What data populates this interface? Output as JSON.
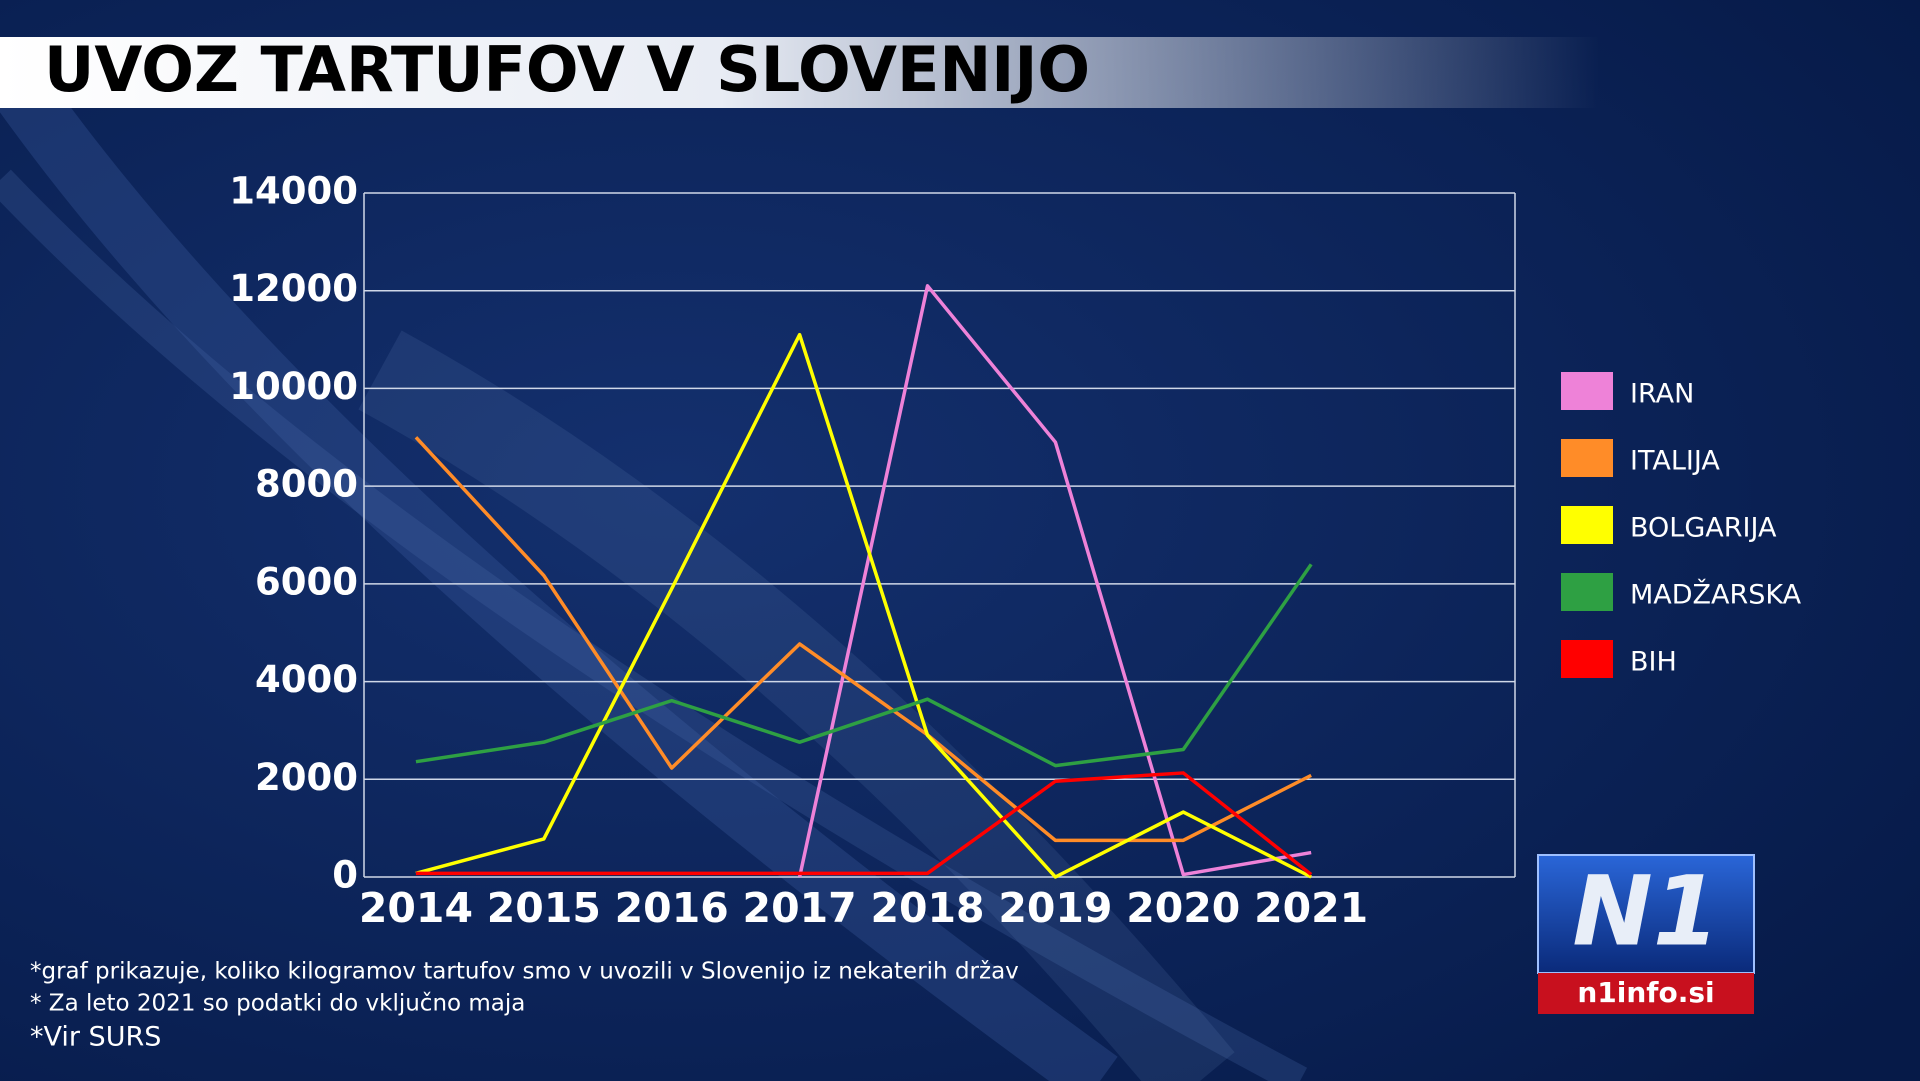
{
  "chart_data": {
    "type": "line",
    "title": "UVOZ TARTUFOV V SLOVENIJO",
    "categories": [
      "2014",
      "2015",
      "2016",
      "2017",
      "2018",
      "2019",
      "2020",
      "2021",
      null
    ],
    "series": [
      {
        "name": "IRAN",
        "color": "#ee82d8",
        "values": [
          null,
          null,
          null,
          0,
          12100,
          8900,
          50,
          500,
          null
        ]
      },
      {
        "name": "ITALIJA",
        "color": "#ff8c28",
        "values": [
          9000,
          6170,
          2230,
          4770,
          2910,
          750,
          750,
          2080,
          null
        ]
      },
      {
        "name": "BOLGARIJA",
        "color": "#ffff00",
        "values": [
          75,
          780,
          5900,
          11100,
          2900,
          0,
          1330,
          0,
          null
        ]
      },
      {
        "name": "MADŽARSKA",
        "color": "#2ea043",
        "values": [
          2360,
          2760,
          3610,
          2760,
          3640,
          2280,
          2610,
          6400,
          null
        ]
      },
      {
        "name": "BIH",
        "color": "#ff0000",
        "values": [
          75,
          75,
          75,
          75,
          75,
          1960,
          2130,
          50,
          null
        ]
      }
    ],
    "ylim": [
      0,
      14000
    ],
    "yticks": [
      0,
      2000,
      4000,
      6000,
      8000,
      10000,
      12000,
      14000
    ],
    "grid": true,
    "legend": "right",
    "notes": [
      "*graf prikazuje, koliko kilogramov tartufov smo v uvozili v Slovenijo iz nekaterih držav",
      "* Za leto 2021 so podatki do vključno maja",
      "*Vir SURS"
    ],
    "logo": {
      "mark": "N1",
      "site": "n1info.si"
    }
  }
}
